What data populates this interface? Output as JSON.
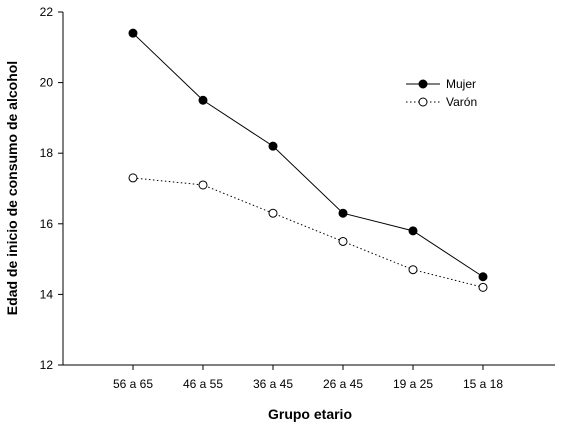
{
  "chart_data": {
    "type": "line",
    "title": "",
    "xlabel": "Grupo etario",
    "ylabel": "Edad de inicio de consumo de alcohol",
    "categories": [
      "56 a 65",
      "46 a 55",
      "36 a 45",
      "26 a 45",
      "19 a 25",
      "15 a 18"
    ],
    "ylim": [
      12,
      22
    ],
    "yticks": [
      "12",
      "14",
      "16",
      "18",
      "20",
      "22"
    ],
    "grid": false,
    "legend_position": "top-right",
    "series": [
      {
        "name": "Mujer",
        "values": [
          21.4,
          19.5,
          18.2,
          16.3,
          15.8,
          14.5
        ],
        "line_style": "solid",
        "marker": "filled-circle",
        "color": "#000000"
      },
      {
        "name": "Varón",
        "values": [
          17.3,
          17.1,
          16.3,
          15.5,
          14.7,
          14.2
        ],
        "line_style": "dotted",
        "marker": "open-circle",
        "color": "#000000"
      }
    ]
  }
}
